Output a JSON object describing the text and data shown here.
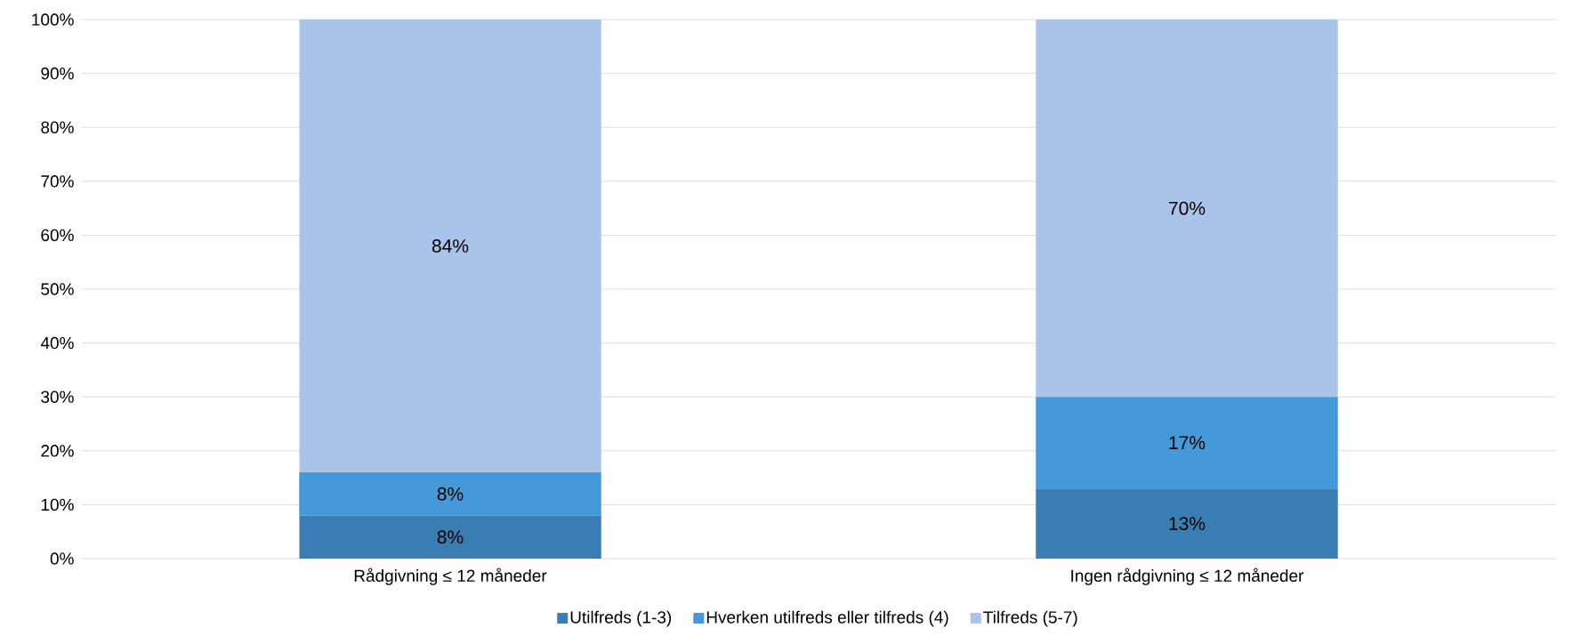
{
  "chart_data": {
    "type": "bar",
    "stacked": true,
    "categories": [
      "Rådgivning ≤ 12 måneder",
      "Ingen rådgivning ≤ 12 måneder"
    ],
    "series": [
      {
        "name": "Utilfreds (1-3)",
        "color": "#3a7db3",
        "values": [
          8,
          13
        ],
        "value_labels": [
          "8%",
          "13%"
        ]
      },
      {
        "name": "Hverken utilfreds eller tilfreds (4)",
        "color": "#4699d8",
        "values": [
          8,
          17
        ],
        "value_labels": [
          "8%",
          "17%"
        ]
      },
      {
        "name": "Tilfreds (5-7)",
        "color": "#a9c4e8",
        "values": [
          84,
          70
        ],
        "value_labels": [
          "84%",
          "70%"
        ]
      }
    ],
    "ylim": [
      0,
      100
    ],
    "yticks": [
      {
        "value": 0,
        "label": "0%"
      },
      {
        "value": 10,
        "label": "10%"
      },
      {
        "value": 20,
        "label": "20%"
      },
      {
        "value": 30,
        "label": "30%"
      },
      {
        "value": 40,
        "label": "40%"
      },
      {
        "value": 50,
        "label": "50%"
      },
      {
        "value": 60,
        "label": "60%"
      },
      {
        "value": 70,
        "label": "70%"
      },
      {
        "value": 80,
        "label": "80%"
      },
      {
        "value": 90,
        "label": "90%"
      },
      {
        "value": 100,
        "label": "100%"
      }
    ],
    "grid": "y",
    "legend": "bottom"
  }
}
